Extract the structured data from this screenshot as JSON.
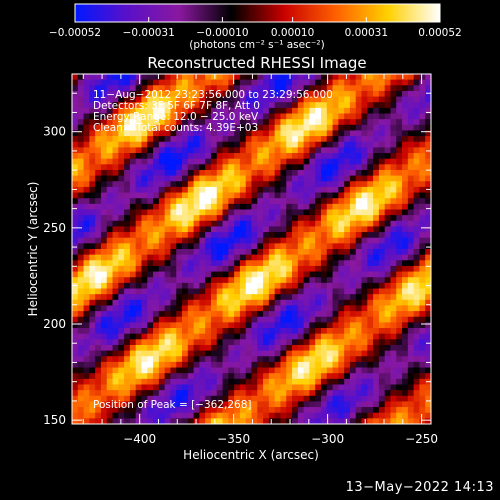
{
  "chart_data": {
    "type": "heatmap",
    "title": "Reconstructed RHESSI Image",
    "xlabel": "Heliocentric X (arcsec)",
    "ylabel": "Heliocentric Y (arcsec)",
    "xlim": [
      -436,
      -245
    ],
    "ylim": [
      148,
      330
    ],
    "xticks": [
      -400,
      -350,
      -300,
      -250
    ],
    "yticks": [
      150,
      200,
      250,
      300
    ],
    "xtick_labels": [
      "−400",
      "−350",
      "−300",
      "−250"
    ],
    "ytick_labels": [
      "150",
      "200",
      "250",
      "300"
    ],
    "colorbar": {
      "unit_label": "(photons cm⁻² s⁻¹ asec⁻²)",
      "range": [
        -0.00052,
        0.00052
      ],
      "tick_values": [
        -0.00052,
        -0.00031,
        -0.0001,
        0.0001,
        0.00031,
        0.00052
      ],
      "tick_labels": [
        "−0.00052",
        "−0.00031",
        "−0.00010",
        "0.00010",
        "0.00031",
        "0.00052"
      ],
      "colors": [
        "#0018ff",
        "#5a10c8",
        "#8a18a0",
        "#000000",
        "#c80000",
        "#ff6000",
        "#ffd000",
        "#ffffff"
      ]
    },
    "annotations": [
      "11−Aug−2012 23:23:56.000 to 23:29:56.000",
      "Detectors: 3F 5F 6F 7F 8F, Att 0",
      "Energy Range: 12.0 − 25.0 keV",
      "Clean    Total counts: 4.39E+03"
    ],
    "peak_label": "Position of Peak = [−362,268]",
    "peak": [
      -362,
      268
    ],
    "pattern": {
      "stripe_direction_deg": 35,
      "stripe_period_arcsec": 52,
      "peak_value": 0.00052
    }
  },
  "footer": {
    "date": "13−May−2022 14:13"
  }
}
